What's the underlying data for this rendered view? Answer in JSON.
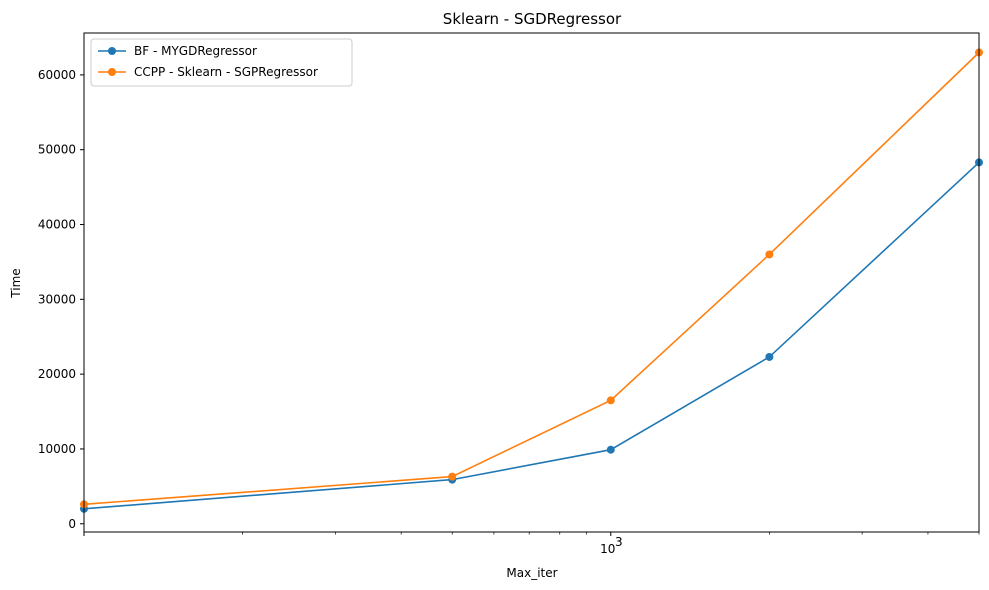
{
  "chart_data": {
    "type": "line",
    "title": "Sklearn - SGDRegressor",
    "xlabel": "Max_iter",
    "ylabel": "Time",
    "xscale": "log",
    "x": [
      100,
      500,
      1000,
      2000,
      5000
    ],
    "xlim": [
      100,
      5000
    ],
    "ylim": [
      -1100,
      65600
    ],
    "x_ticks": [
      {
        "value": 1000,
        "base": "10",
        "exp": "3"
      }
    ],
    "y_ticks": [
      0,
      10000,
      20000,
      30000,
      40000,
      50000,
      60000
    ],
    "series": [
      {
        "name": "BF - MYGDRegressor",
        "color": "#1f77b4",
        "values": [
          2000,
          5900,
          9900,
          22300,
          48300
        ]
      },
      {
        "name": "CCPP - Sklearn - SGPRegressor",
        "color": "#ff7f0e",
        "values": [
          2600,
          6300,
          16500,
          36000,
          63000
        ]
      }
    ],
    "legend_position": "upper-left",
    "grid": false
  }
}
